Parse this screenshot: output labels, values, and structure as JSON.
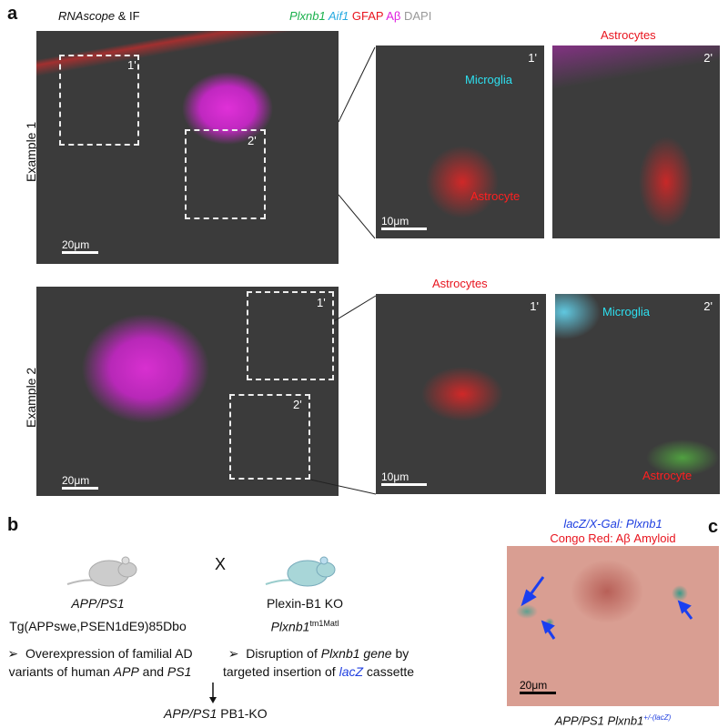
{
  "panel_a": {
    "label": "a",
    "method": "RNAscope",
    "method_suffix": " & IF",
    "legend": [
      {
        "text": "Plxnb1",
        "color": "#19b04b"
      },
      {
        "text": " Aif1",
        "color": "#25a9e0"
      },
      {
        "text": " GFAP",
        "color": "#e8141e"
      },
      {
        "text": " Aβ",
        "color": "#e020e0"
      },
      {
        "text": " DAPI",
        "color": "#999999"
      }
    ],
    "example1": {
      "label": "Example 1",
      "inset1": "1'",
      "inset2": "2'",
      "scale_main": "20μm",
      "scale_zoom": "10μm",
      "zoom1_microglia": "Microglia",
      "zoom1_astrocyte": "Astrocyte",
      "zoom2_title": "Astrocytes"
    },
    "example2": {
      "label": "Example 2",
      "inset1": "1'",
      "inset2": "2'",
      "scale_main": "20μm",
      "scale_zoom": "10μm",
      "zoom1_title": "Astrocytes",
      "zoom2_microglia": "Microglia",
      "zoom2_astrocyte": "Astrocyte"
    }
  },
  "panel_b": {
    "label": "b",
    "cross": "X",
    "left": {
      "name": "APP/PS1",
      "strain": "Tg(APPswe,PSEN1dE9)85Dbo",
      "bullet_pre": "Overexpression of familial AD",
      "bullet_line2_pre": "variants of human ",
      "app": "APP",
      "and": " and ",
      "ps1": "PS1"
    },
    "right": {
      "name": "Plexin-B1 KO",
      "allele": "Plxnb1",
      "allele_sup": "tm1Matl",
      "bullet_pre": "Disruption of ",
      "gene": "Plxnb1 gene",
      "bullet_post": " by",
      "line2_pre": "targeted insertion of ",
      "lacz": "lacZ",
      "line2_post": " cassette"
    },
    "result_a": "APP/PS1",
    "result_b": " PB1-KO",
    "bullet_glyph": "➢"
  },
  "panel_c": {
    "label": "c",
    "title1": "lacZ/X-Gal: Plxnb1",
    "title2": "Congo Red: Aβ Amyloid",
    "scale": "20μm",
    "caption": "APP/PS1 Plxnb1",
    "caption_sup": "+/-(lacZ)"
  }
}
